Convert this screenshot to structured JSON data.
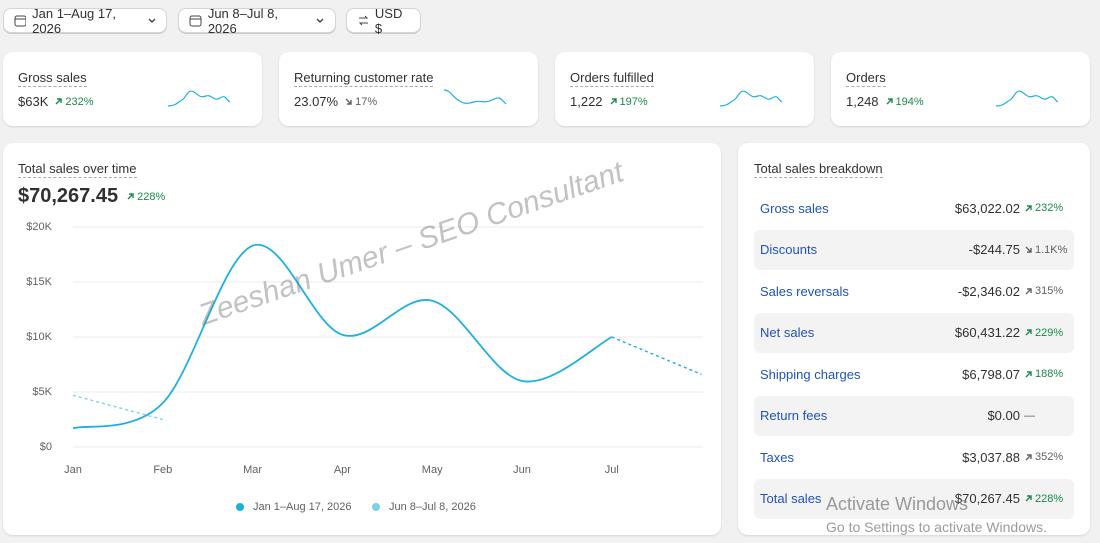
{
  "filters": [
    {
      "label": "Jan 1–Aug 17, 2026"
    },
    {
      "label": "Jun 8–Jul 8, 2026"
    },
    {
      "label": "USD $"
    }
  ],
  "kpis": [
    {
      "title": "Gross sales",
      "value": "$63K",
      "change": "232%",
      "trend": "up",
      "positive": true
    },
    {
      "title": "Returning customer rate",
      "value": "23.07%",
      "change": "17%",
      "trend": "down",
      "positive": false
    },
    {
      "title": "Orders fulfilled",
      "value": "1,222",
      "change": "197%",
      "trend": "up",
      "positive": true
    },
    {
      "title": "Orders",
      "value": "1,248",
      "change": "194%",
      "trend": "up",
      "positive": true
    }
  ],
  "chart_data": {
    "type": "line",
    "title": "Total sales over time",
    "total": "$70,267.45",
    "change": "228%",
    "categories": [
      "Jan",
      "Feb",
      "Mar",
      "Apr",
      "May",
      "Jun",
      "Jul",
      null
    ],
    "series": [
      {
        "name": "Jan 1–Aug 17, 2026",
        "color": "#1eb0df",
        "values": [
          1700,
          4000,
          18300,
          10200,
          13300,
          6000,
          10000,
          6600
        ],
        "dashed_from": 6
      },
      {
        "name": "Jun 8–Jul 8, 2026",
        "color": "#7fcfea",
        "values": [
          4700,
          2500,
          null,
          null,
          null,
          null,
          null,
          null
        ],
        "dashed_from": 0
      }
    ],
    "ylim": [
      0,
      20000
    ],
    "yticks": [
      {
        "value": 0,
        "label": "$0"
      },
      {
        "value": 5000,
        "label": "$5K"
      },
      {
        "value": 10000,
        "label": "$10K"
      },
      {
        "value": 15000,
        "label": "$15K"
      },
      {
        "value": 20000,
        "label": "$20K"
      }
    ],
    "grid": true
  },
  "breakdown": {
    "title": "Total sales breakdown",
    "rows": [
      {
        "label": "Gross sales",
        "value": "$63,022.02",
        "change": "232%",
        "trend": "up",
        "positive": true
      },
      {
        "label": "Discounts",
        "value": "-$244.75",
        "change": "1.1K%",
        "trend": "down",
        "positive": false
      },
      {
        "label": "Sales reversals",
        "value": "-$2,346.02",
        "change": "315%",
        "trend": "up",
        "positive": false
      },
      {
        "label": "Net sales",
        "value": "$60,431.22",
        "change": "229%",
        "trend": "up",
        "positive": true
      },
      {
        "label": "Shipping charges",
        "value": "$6,798.07",
        "change": "188%",
        "trend": "up",
        "positive": true
      },
      {
        "label": "Return fees",
        "value": "$0.00",
        "change": "—",
        "trend": "none",
        "positive": false
      },
      {
        "label": "Taxes",
        "value": "$3,037.88",
        "change": "352%",
        "trend": "up",
        "positive": false
      },
      {
        "label": "Total sales",
        "value": "$70,267.45",
        "change": "228%",
        "trend": "up",
        "positive": true
      }
    ]
  },
  "watermark": "Zeeshan Umer – SEO Consultant",
  "os_notice": {
    "title": "Activate Windows",
    "subtitle": "Go to Settings to activate Windows."
  }
}
